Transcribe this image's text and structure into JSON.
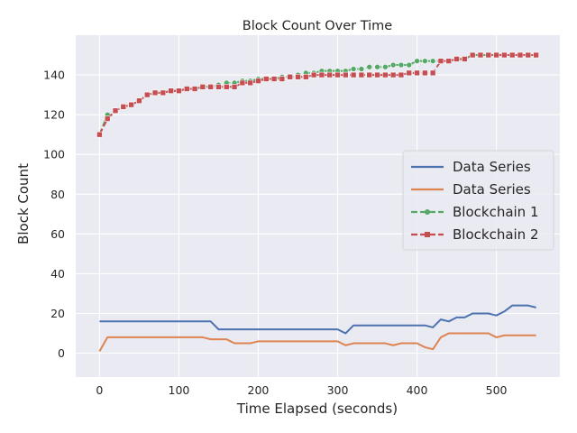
{
  "chart_data": {
    "type": "line",
    "title": "Block Count Over Time",
    "xlabel": "Time Elapsed (seconds)",
    "ylabel": "Block Count",
    "xlim": [
      -30,
      580
    ],
    "ylim": [
      -12,
      160
    ],
    "xticks": [
      0,
      100,
      200,
      300,
      400,
      500
    ],
    "yticks": [
      0,
      20,
      40,
      60,
      80,
      100,
      120,
      140
    ],
    "grid": true,
    "legend_position": "center-right",
    "series": [
      {
        "name": "Data Series",
        "color": "#4c72b0",
        "marker": "none",
        "points": [
          [
            0,
            16
          ],
          [
            10,
            16
          ],
          [
            20,
            16
          ],
          [
            30,
            16
          ],
          [
            40,
            16
          ],
          [
            50,
            16
          ],
          [
            60,
            16
          ],
          [
            70,
            16
          ],
          [
            80,
            16
          ],
          [
            90,
            16
          ],
          [
            100,
            16
          ],
          [
            110,
            16
          ],
          [
            120,
            16
          ],
          [
            130,
            16
          ],
          [
            140,
            16
          ],
          [
            150,
            12
          ],
          [
            160,
            12
          ],
          [
            170,
            12
          ],
          [
            180,
            12
          ],
          [
            190,
            12
          ],
          [
            200,
            12
          ],
          [
            210,
            12
          ],
          [
            220,
            12
          ],
          [
            230,
            12
          ],
          [
            240,
            12
          ],
          [
            250,
            12
          ],
          [
            260,
            12
          ],
          [
            270,
            12
          ],
          [
            280,
            12
          ],
          [
            290,
            12
          ],
          [
            300,
            12
          ],
          [
            310,
            10
          ],
          [
            320,
            14
          ],
          [
            330,
            14
          ],
          [
            340,
            14
          ],
          [
            350,
            14
          ],
          [
            360,
            14
          ],
          [
            370,
            14
          ],
          [
            380,
            14
          ],
          [
            390,
            14
          ],
          [
            400,
            14
          ],
          [
            410,
            14
          ],
          [
            420,
            13
          ],
          [
            430,
            17
          ],
          [
            440,
            16
          ],
          [
            450,
            18
          ],
          [
            460,
            18
          ],
          [
            470,
            20
          ],
          [
            480,
            20
          ],
          [
            490,
            20
          ],
          [
            500,
            19
          ],
          [
            510,
            21
          ],
          [
            520,
            24
          ],
          [
            530,
            24
          ],
          [
            540,
            24
          ],
          [
            550,
            23
          ]
        ]
      },
      {
        "name": "Data Series",
        "color": "#dd8452",
        "marker": "none",
        "points": [
          [
            0,
            1
          ],
          [
            10,
            8
          ],
          [
            20,
            8
          ],
          [
            30,
            8
          ],
          [
            40,
            8
          ],
          [
            50,
            8
          ],
          [
            60,
            8
          ],
          [
            70,
            8
          ],
          [
            80,
            8
          ],
          [
            90,
            8
          ],
          [
            100,
            8
          ],
          [
            110,
            8
          ],
          [
            120,
            8
          ],
          [
            130,
            8
          ],
          [
            140,
            7
          ],
          [
            150,
            7
          ],
          [
            160,
            7
          ],
          [
            170,
            5
          ],
          [
            180,
            5
          ],
          [
            190,
            5
          ],
          [
            200,
            6
          ],
          [
            210,
            6
          ],
          [
            220,
            6
          ],
          [
            230,
            6
          ],
          [
            240,
            6
          ],
          [
            250,
            6
          ],
          [
            260,
            6
          ],
          [
            270,
            6
          ],
          [
            280,
            6
          ],
          [
            290,
            6
          ],
          [
            300,
            6
          ],
          [
            310,
            4
          ],
          [
            320,
            5
          ],
          [
            330,
            5
          ],
          [
            340,
            5
          ],
          [
            350,
            5
          ],
          [
            360,
            5
          ],
          [
            370,
            4
          ],
          [
            380,
            5
          ],
          [
            390,
            5
          ],
          [
            400,
            5
          ],
          [
            410,
            3
          ],
          [
            420,
            2
          ],
          [
            430,
            8
          ],
          [
            440,
            10
          ],
          [
            450,
            10
          ],
          [
            460,
            10
          ],
          [
            470,
            10
          ],
          [
            480,
            10
          ],
          [
            490,
            10
          ],
          [
            500,
            8
          ],
          [
            510,
            9
          ],
          [
            520,
            9
          ],
          [
            530,
            9
          ],
          [
            540,
            9
          ],
          [
            550,
            9
          ]
        ]
      },
      {
        "name": "Blockchain 1",
        "color": "#55a868",
        "marker": "circle",
        "points": [
          [
            0,
            110
          ],
          [
            10,
            120
          ],
          [
            20,
            122
          ],
          [
            30,
            124
          ],
          [
            40,
            125
          ],
          [
            50,
            127
          ],
          [
            60,
            130
          ],
          [
            70,
            131
          ],
          [
            80,
            131
          ],
          [
            90,
            132
          ],
          [
            100,
            132
          ],
          [
            110,
            133
          ],
          [
            120,
            133
          ],
          [
            130,
            134
          ],
          [
            140,
            134
          ],
          [
            150,
            135
          ],
          [
            160,
            136
          ],
          [
            170,
            136
          ],
          [
            180,
            137
          ],
          [
            190,
            137
          ],
          [
            200,
            138
          ],
          [
            210,
            138
          ],
          [
            220,
            138
          ],
          [
            230,
            139
          ],
          [
            240,
            139
          ],
          [
            250,
            140
          ],
          [
            260,
            141
          ],
          [
            270,
            141
          ],
          [
            280,
            142
          ],
          [
            290,
            142
          ],
          [
            300,
            142
          ],
          [
            310,
            142
          ],
          [
            320,
            143
          ],
          [
            330,
            143
          ],
          [
            340,
            144
          ],
          [
            350,
            144
          ],
          [
            360,
            144
          ],
          [
            370,
            145
          ],
          [
            380,
            145
          ],
          [
            390,
            145
          ],
          [
            400,
            147
          ],
          [
            410,
            147
          ],
          [
            420,
            147
          ],
          [
            430,
            147
          ],
          [
            440,
            147
          ],
          [
            450,
            148
          ],
          [
            460,
            148
          ],
          [
            470,
            150
          ],
          [
            480,
            150
          ],
          [
            490,
            150
          ],
          [
            500,
            150
          ],
          [
            510,
            150
          ],
          [
            520,
            150
          ],
          [
            530,
            150
          ],
          [
            540,
            150
          ],
          [
            550,
            150
          ]
        ]
      },
      {
        "name": "Blockchain 2",
        "color": "#c44e52",
        "marker": "square",
        "points": [
          [
            0,
            110
          ],
          [
            10,
            118
          ],
          [
            20,
            122
          ],
          [
            30,
            124
          ],
          [
            40,
            125
          ],
          [
            50,
            127
          ],
          [
            60,
            130
          ],
          [
            70,
            131
          ],
          [
            80,
            131
          ],
          [
            90,
            132
          ],
          [
            100,
            132
          ],
          [
            110,
            133
          ],
          [
            120,
            133
          ],
          [
            130,
            134
          ],
          [
            140,
            134
          ],
          [
            150,
            134
          ],
          [
            160,
            134
          ],
          [
            170,
            134
          ],
          [
            180,
            136
          ],
          [
            190,
            136
          ],
          [
            200,
            137
          ],
          [
            210,
            138
          ],
          [
            220,
            138
          ],
          [
            230,
            138
          ],
          [
            240,
            139
          ],
          [
            250,
            139
          ],
          [
            260,
            139
          ],
          [
            270,
            140
          ],
          [
            280,
            140
          ],
          [
            290,
            140
          ],
          [
            300,
            140
          ],
          [
            310,
            140
          ],
          [
            320,
            140
          ],
          [
            330,
            140
          ],
          [
            340,
            140
          ],
          [
            350,
            140
          ],
          [
            360,
            140
          ],
          [
            370,
            140
          ],
          [
            380,
            140
          ],
          [
            390,
            141
          ],
          [
            400,
            141
          ],
          [
            410,
            141
          ],
          [
            420,
            141
          ],
          [
            430,
            147
          ],
          [
            440,
            147
          ],
          [
            450,
            148
          ],
          [
            460,
            148
          ],
          [
            470,
            150
          ],
          [
            480,
            150
          ],
          [
            490,
            150
          ],
          [
            500,
            150
          ],
          [
            510,
            150
          ],
          [
            520,
            150
          ],
          [
            530,
            150
          ],
          [
            540,
            150
          ],
          [
            550,
            150
          ]
        ]
      }
    ]
  }
}
